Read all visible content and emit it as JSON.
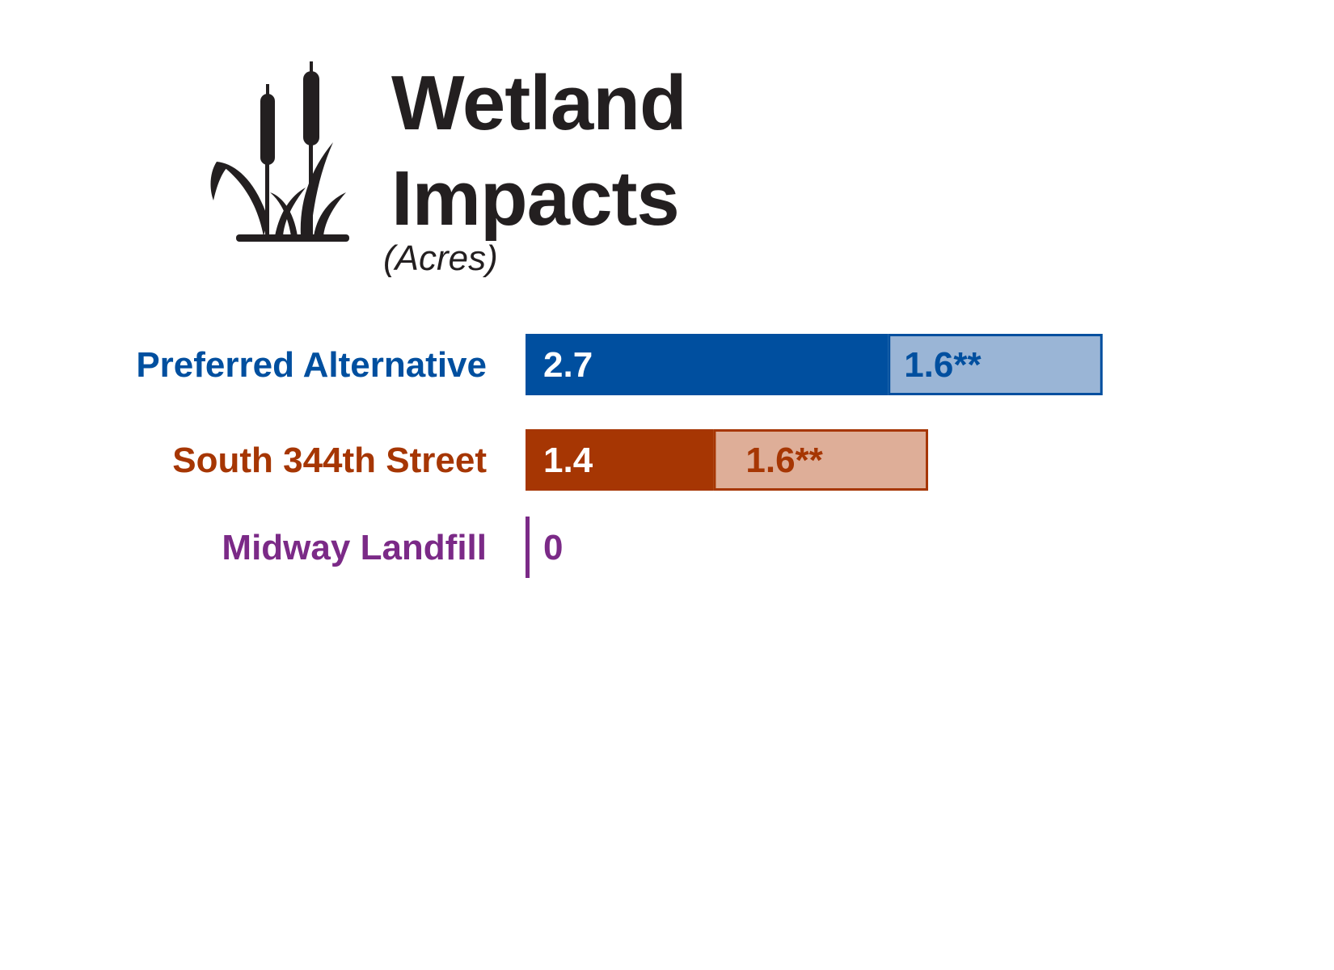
{
  "chart_data": {
    "type": "bar",
    "orientation": "horizontal",
    "stacked": true,
    "title": "Wetland Impacts",
    "title_lines": [
      "Wetland",
      "Impacts"
    ],
    "subtitle": "(Acres)",
    "icon": "cattail-wetland-icon",
    "categories": [
      "Preferred Alternative",
      "South 344th Street",
      "Midway Landfill"
    ],
    "series": [
      {
        "values": [
          2.7,
          1.4,
          0
        ],
        "labels": [
          "2.7",
          "1.4",
          "0"
        ],
        "style": "solid"
      },
      {
        "values": [
          1.6,
          1.6,
          0
        ],
        "labels": [
          "1.6**",
          "1.6**",
          ""
        ],
        "style": "light"
      }
    ],
    "colors": {
      "Preferred Alternative": {
        "dark": "#004f9f",
        "light": "#9ab5d6"
      },
      "South 344th Street": {
        "dark": "#a63603",
        "light": "#deae98"
      },
      "Midway Landfill": {
        "dark": "#7b2a87",
        "light": "#c7a6cf"
      }
    },
    "xlim": [
      0,
      4.5
    ],
    "grid": false,
    "legend": "none"
  }
}
